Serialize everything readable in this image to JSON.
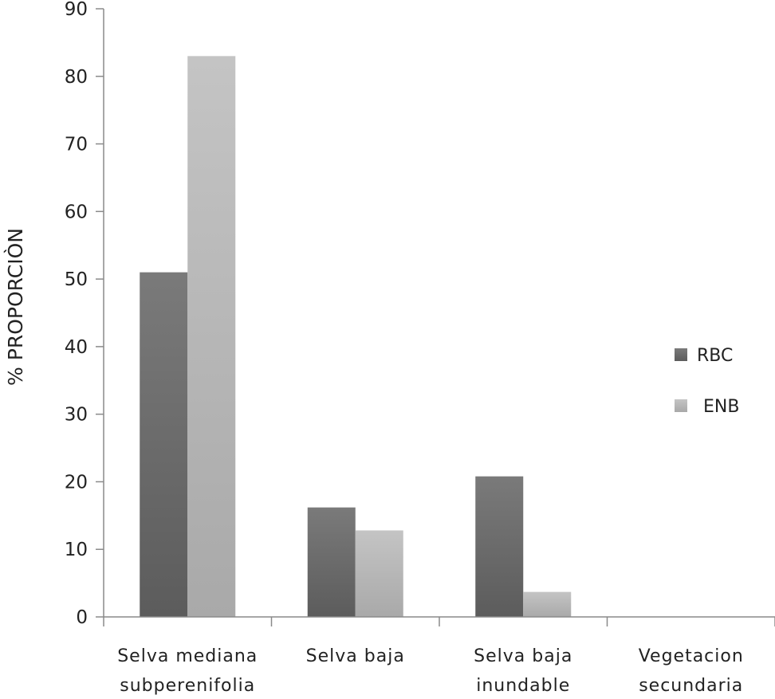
{
  "chart_data": {
    "type": "bar",
    "title": "",
    "xlabel": "",
    "ylabel": "% PROPORCIÒN",
    "ylim": [
      0,
      90
    ],
    "yticks": [
      0,
      10,
      20,
      30,
      40,
      50,
      60,
      70,
      80,
      90
    ],
    "categories": [
      [
        "Selva mediana",
        "subperenifolia"
      ],
      [
        "Selva baja"
      ],
      [
        "Selva baja",
        "inundable"
      ],
      [
        "Vegetacion",
        "secundaria"
      ]
    ],
    "series": [
      {
        "name": "RBC",
        "color": "#666666",
        "values": [
          51,
          16.2,
          20.8,
          0
        ]
      },
      {
        "name": "ENB",
        "color": "#b8b8b8",
        "values": [
          83,
          12.8,
          3.7,
          0
        ]
      }
    ],
    "grid": false,
    "legend_position": "right"
  }
}
